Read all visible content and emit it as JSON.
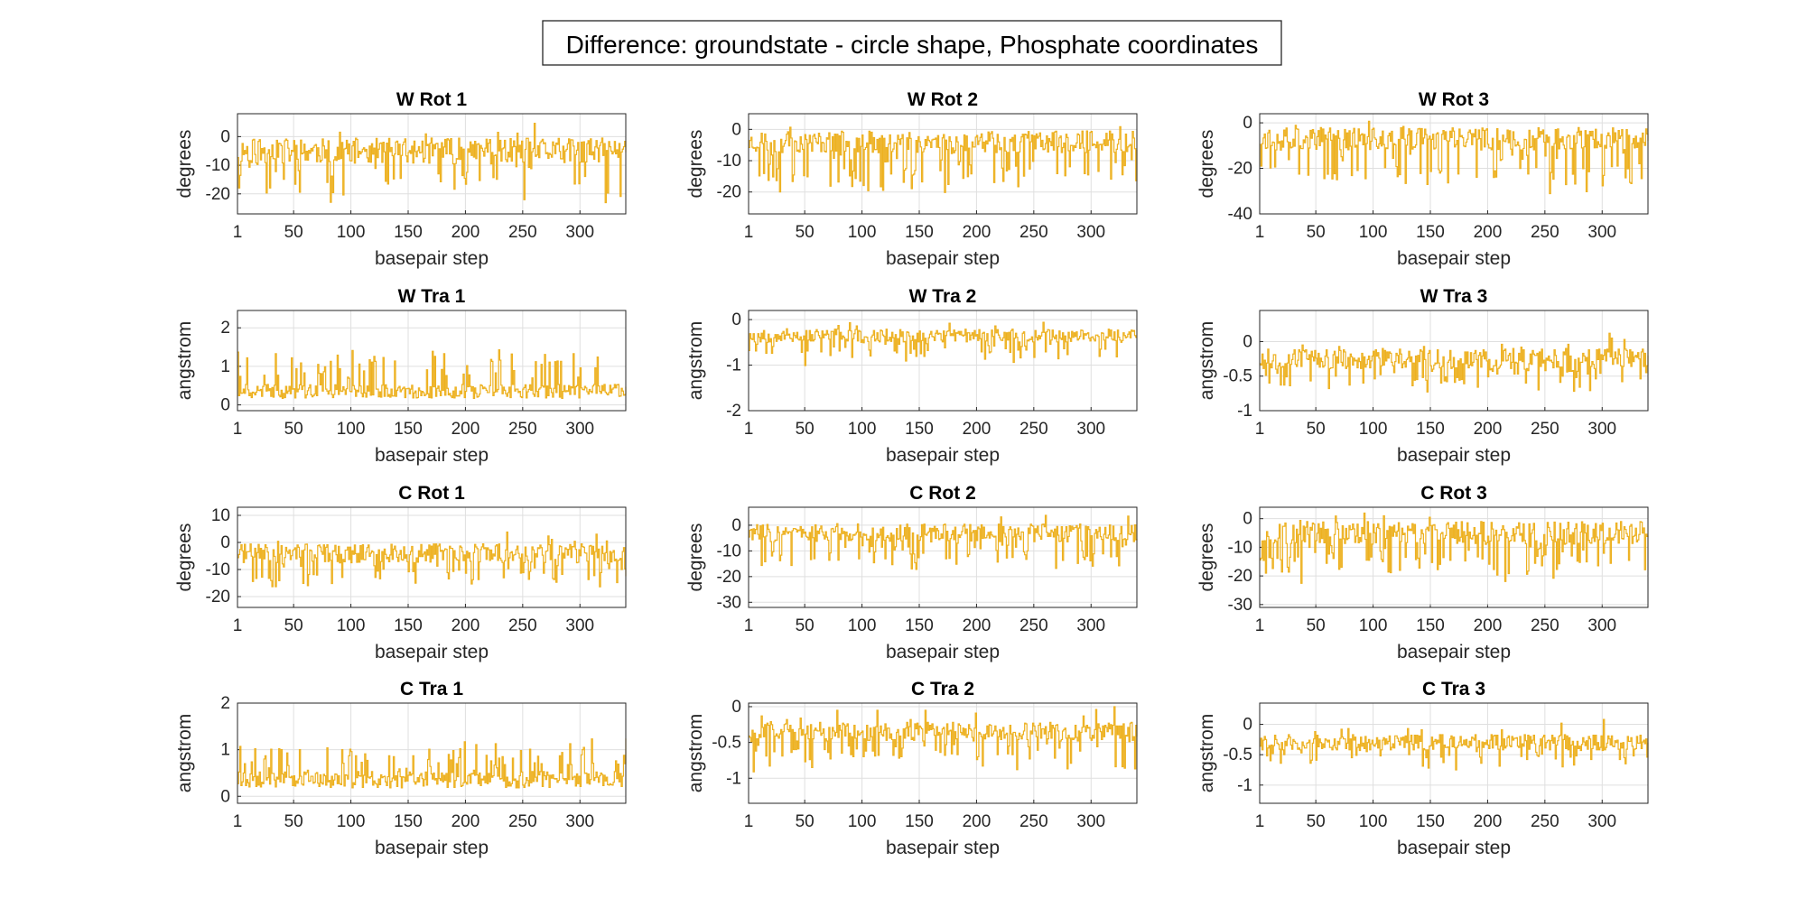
{
  "figure": {
    "suptitle": "Difference: groundstate - circle shape, Phosphate coordinates",
    "line_color": "#EDB120"
  },
  "chart_data": [
    {
      "type": "line",
      "title": "W Rot 1",
      "xlabel": "basepair step",
      "ylabel": "degrees",
      "xlim": [
        1,
        340
      ],
      "ylim": [
        -27,
        8
      ],
      "xticks": [
        1,
        50,
        100,
        150,
        200,
        250,
        300
      ],
      "yticks": [
        -20,
        -10,
        0
      ],
      "n": 340,
      "baseline": -5,
      "spread": 4.5,
      "spike": -14,
      "spike_rate": 0.18,
      "up_spike": 6,
      "seed": 11
    },
    {
      "type": "line",
      "title": "W Rot 2",
      "xlabel": "basepair step",
      "ylabel": "degrees",
      "xlim": [
        1,
        340
      ],
      "ylim": [
        -27,
        5
      ],
      "xticks": [
        1,
        50,
        100,
        150,
        200,
        250,
        300
      ],
      "yticks": [
        -20,
        -10,
        0
      ],
      "n": 340,
      "baseline": -4,
      "spread": 3.5,
      "spike": -14,
      "spike_rate": 0.2,
      "up_spike": 4,
      "seed": 23
    },
    {
      "type": "line",
      "title": "W Rot 3",
      "xlabel": "basepair step",
      "ylabel": "degrees",
      "xlim": [
        1,
        340
      ],
      "ylim": [
        -40,
        4
      ],
      "xticks": [
        1,
        50,
        100,
        150,
        200,
        250,
        300
      ],
      "yticks": [
        -40,
        -20,
        0
      ],
      "n": 340,
      "baseline": -7,
      "spread": 5,
      "spike": -20,
      "spike_rate": 0.2,
      "up_spike": 3,
      "seed": 37
    },
    {
      "type": "line",
      "title": "W Tra 1",
      "xlabel": "basepair step",
      "ylabel": "angstrom",
      "xlim": [
        1,
        340
      ],
      "ylim": [
        -0.15,
        2.45
      ],
      "xticks": [
        1,
        50,
        100,
        150,
        200,
        250,
        300
      ],
      "yticks": [
        0,
        1,
        2
      ],
      "n": 340,
      "baseline": 0.35,
      "spread": 0.18,
      "spike": 0.9,
      "spike_rate": 0.15,
      "up_spike": 1.2,
      "seed": 41
    },
    {
      "type": "line",
      "title": "W Tra 2",
      "xlabel": "basepair step",
      "ylabel": "angstrom",
      "xlim": [
        1,
        340
      ],
      "ylim": [
        -2,
        0.2
      ],
      "xticks": [
        1,
        50,
        100,
        150,
        200,
        250,
        300
      ],
      "yticks": [
        -2,
        -1,
        0
      ],
      "n": 340,
      "baseline": -0.35,
      "spread": 0.15,
      "spike": -0.55,
      "spike_rate": 0.15,
      "up_spike": 0.25,
      "seed": 53
    },
    {
      "type": "line",
      "title": "W Tra 3",
      "xlabel": "basepair step",
      "ylabel": "angstrom",
      "xlim": [
        1,
        340
      ],
      "ylim": [
        -1,
        0.45
      ],
      "xticks": [
        1,
        50,
        100,
        150,
        200,
        250,
        300
      ],
      "yticks": [
        -1,
        -0.5,
        0
      ],
      "n": 340,
      "baseline": -0.25,
      "spread": 0.15,
      "spike": -0.35,
      "spike_rate": 0.18,
      "up_spike": 0.35,
      "seed": 67
    },
    {
      "type": "line",
      "title": "C Rot 1",
      "xlabel": "basepair step",
      "ylabel": "degrees",
      "xlim": [
        1,
        340
      ],
      "ylim": [
        -24,
        13
      ],
      "xticks": [
        1,
        50,
        100,
        150,
        200,
        250,
        300
      ],
      "yticks": [
        -20,
        -10,
        0,
        10
      ],
      "n": 340,
      "baseline": -4,
      "spread": 3.5,
      "spike": -11,
      "spike_rate": 0.18,
      "up_spike": 8,
      "seed": 71
    },
    {
      "type": "line",
      "title": "C Rot 2",
      "xlabel": "basepair step",
      "ylabel": "degrees",
      "xlim": [
        1,
        340
      ],
      "ylim": [
        -32,
        7
      ],
      "xticks": [
        1,
        50,
        100,
        150,
        200,
        250,
        300
      ],
      "yticks": [
        -30,
        -20,
        -10,
        0
      ],
      "n": 340,
      "baseline": -3,
      "spread": 3.5,
      "spike": -11,
      "spike_rate": 0.2,
      "up_spike": 5,
      "seed": 83
    },
    {
      "type": "line",
      "title": "C Rot 3",
      "xlabel": "basepair step",
      "ylabel": "degrees",
      "xlim": [
        1,
        340
      ],
      "ylim": [
        -31,
        4
      ],
      "xticks": [
        1,
        50,
        100,
        150,
        200,
        250,
        300
      ],
      "yticks": [
        -30,
        -20,
        -10,
        0
      ],
      "n": 340,
      "baseline": -5,
      "spread": 4,
      "spike": -14,
      "spike_rate": 0.22,
      "up_spike": 3,
      "seed": 97
    },
    {
      "type": "line",
      "title": "C Tra 1",
      "xlabel": "basepair step",
      "ylabel": "angstrom",
      "xlim": [
        1,
        340
      ],
      "ylim": [
        -0.15,
        2
      ],
      "xticks": [
        1,
        50,
        100,
        150,
        200,
        250,
        300
      ],
      "yticks": [
        0,
        1,
        2
      ],
      "n": 340,
      "baseline": 0.35,
      "spread": 0.18,
      "spike": 0.7,
      "spike_rate": 0.18,
      "up_spike": 1.1,
      "seed": 101
    },
    {
      "type": "line",
      "title": "C Tra 2",
      "xlabel": "basepair step",
      "ylabel": "angstrom",
      "xlim": [
        1,
        340
      ],
      "ylim": [
        -1.35,
        0.05
      ],
      "xticks": [
        1,
        50,
        100,
        150,
        200,
        250,
        300
      ],
      "yticks": [
        -1,
        -0.5,
        0
      ],
      "n": 340,
      "baseline": -0.35,
      "spread": 0.13,
      "spike": -0.45,
      "spike_rate": 0.2,
      "up_spike": 0.3,
      "seed": 113
    },
    {
      "type": "line",
      "title": "C Tra 3",
      "xlabel": "basepair step",
      "ylabel": "angstrom",
      "xlim": [
        1,
        340
      ],
      "ylim": [
        -1.3,
        0.35
      ],
      "xticks": [
        1,
        50,
        100,
        150,
        200,
        250,
        300
      ],
      "yticks": [
        -1,
        -0.5,
        0
      ],
      "n": 340,
      "baseline": -0.3,
      "spread": 0.13,
      "spike": -0.35,
      "spike_rate": 0.16,
      "up_spike": 0.4,
      "seed": 127
    }
  ]
}
